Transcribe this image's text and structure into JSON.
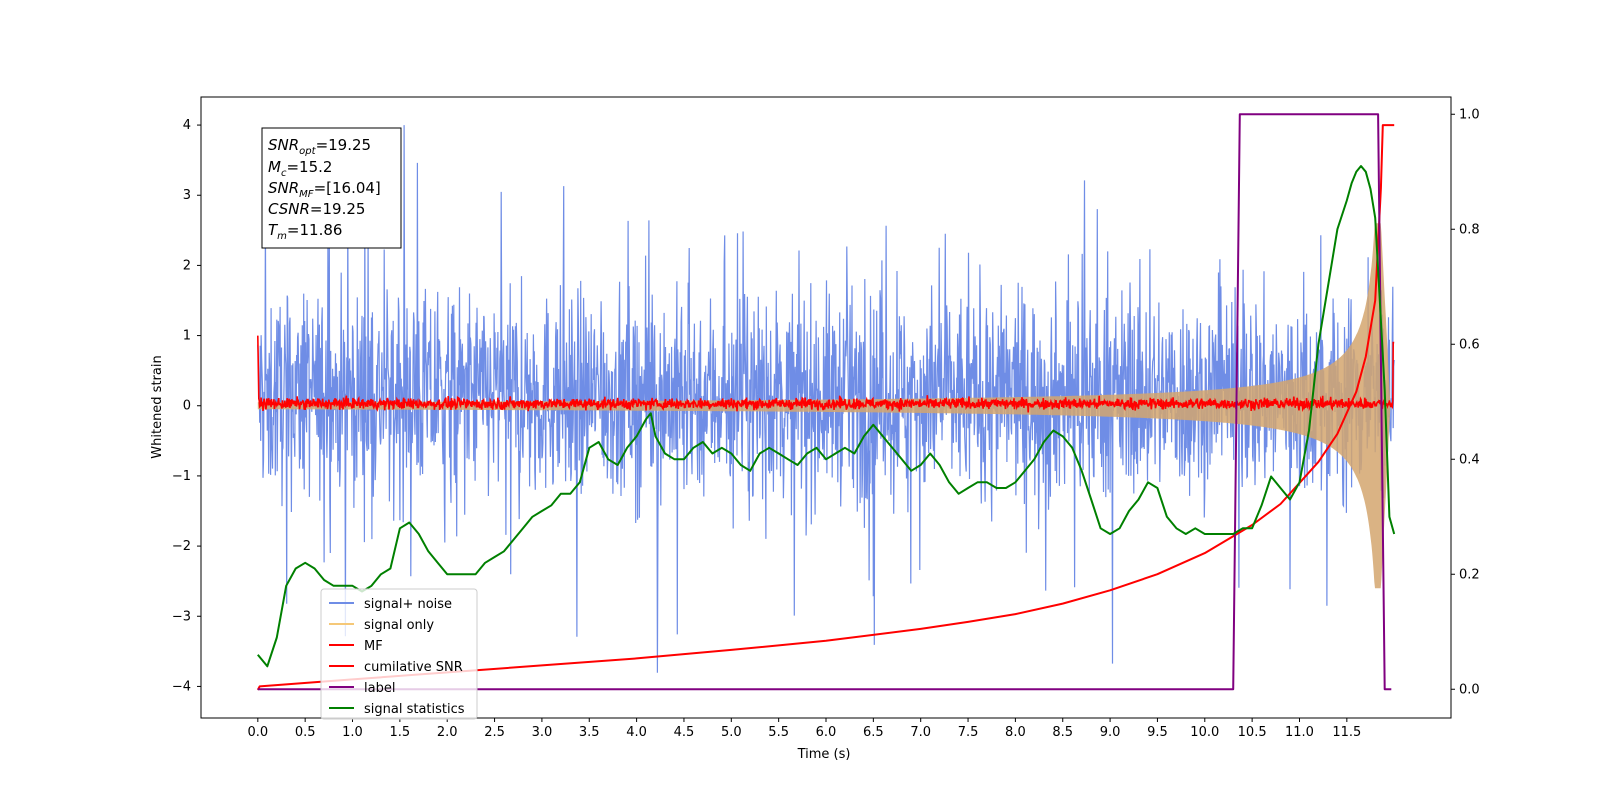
{
  "chart_data": {
    "type": "line",
    "xlabel": "Time (s)",
    "ylabel": "Whitened strain",
    "xlim": [
      -0.6,
      12.6
    ],
    "ylim": [
      -4.45,
      4.4
    ],
    "y2lim": [
      -0.05,
      1.03
    ],
    "x_ticks": [
      "0.0",
      "0.5",
      "1.0",
      "1.5",
      "2.0",
      "2.5",
      "3.0",
      "3.5",
      "4.0",
      "4.5",
      "5.0",
      "5.5",
      "6.0",
      "6.5",
      "7.0",
      "7.5",
      "8.0",
      "8.5",
      "9.0",
      "9.5",
      "10.0",
      "10.5",
      "11.0",
      "11.5"
    ],
    "y_ticks": [
      "4",
      "3",
      "2",
      "1",
      "0",
      "−1",
      "−2",
      "−3",
      "−4"
    ],
    "y2_ticks": [
      "1.0",
      "0.8",
      "0.6",
      "0.4",
      "0.2",
      "0.0"
    ],
    "grid": false,
    "legend_position": "lower-left",
    "annotation": {
      "snr_opt": {
        "base": "SNR",
        "sub": "opt",
        "value": "=19.25"
      },
      "mc": {
        "base": "M",
        "sub": "c",
        "value": "=15.2"
      },
      "snr_mf": {
        "base": "SNR",
        "sub": "MF",
        "value": "=[16.04]"
      },
      "csnr": {
        "base": "CSNR",
        "sub": "",
        "value": "=19.25"
      },
      "tm": {
        "base": "T",
        "sub": "m",
        "value": "=11.86"
      }
    },
    "series": [
      {
        "name": "signal+ noise",
        "color": "#6f8de6",
        "axis": "left",
        "style": "noise",
        "t_end": 12.0
      },
      {
        "name": "signal only",
        "color": "#f5c878",
        "axis": "left",
        "style": "chirp",
        "peak": 2.6,
        "t_peak": 11.86
      },
      {
        "name": "MF",
        "color": "#ff0000",
        "axis": "left",
        "style": "mf-noise",
        "t_end": 12.0
      },
      {
        "name": "cumilative SNR",
        "color": "#ff0000",
        "axis": "left",
        "x": [
          0.0,
          0.02,
          1.0,
          2.0,
          3.0,
          4.0,
          5.0,
          6.0,
          7.0,
          7.5,
          8.0,
          8.5,
          9.0,
          9.5,
          10.0,
          10.5,
          10.8,
          11.0,
          11.2,
          11.4,
          11.6,
          11.7,
          11.8,
          11.86,
          11.88,
          11.9,
          12.0
        ],
        "y": [
          -4.05,
          -4.0,
          -3.9,
          -3.8,
          -3.7,
          -3.6,
          -3.48,
          -3.35,
          -3.18,
          -3.08,
          -2.97,
          -2.82,
          -2.63,
          -2.4,
          -2.1,
          -1.7,
          -1.4,
          -1.1,
          -0.8,
          -0.4,
          0.2,
          0.7,
          1.5,
          3.1,
          4.0,
          4.0,
          4.0
        ]
      },
      {
        "name": "label",
        "color": "#800080",
        "axis": "right",
        "x": [
          0.0,
          10.3,
          10.37,
          11.83,
          11.9,
          11.97
        ],
        "y": [
          0.0,
          0.0,
          1.0,
          1.0,
          0.0,
          0.0
        ]
      },
      {
        "name": "signal statistics",
        "color": "#008000",
        "axis": "right",
        "x": [
          0.0,
          0.1,
          0.2,
          0.3,
          0.4,
          0.5,
          0.6,
          0.7,
          0.8,
          0.9,
          1.0,
          1.1,
          1.2,
          1.3,
          1.4,
          1.5,
          1.6,
          1.7,
          1.8,
          1.9,
          2.0,
          2.1,
          2.2,
          2.3,
          2.4,
          2.5,
          2.6,
          2.7,
          2.8,
          2.9,
          3.0,
          3.1,
          3.2,
          3.3,
          3.4,
          3.5,
          3.6,
          3.7,
          3.8,
          3.9,
          4.0,
          4.1,
          4.15,
          4.2,
          4.3,
          4.4,
          4.5,
          4.6,
          4.7,
          4.8,
          4.9,
          5.0,
          5.1,
          5.2,
          5.3,
          5.4,
          5.5,
          5.6,
          5.7,
          5.8,
          5.9,
          6.0,
          6.1,
          6.2,
          6.3,
          6.4,
          6.5,
          6.6,
          6.7,
          6.8,
          6.9,
          7.0,
          7.1,
          7.2,
          7.3,
          7.4,
          7.5,
          7.6,
          7.7,
          7.8,
          7.9,
          8.0,
          8.1,
          8.2,
          8.3,
          8.4,
          8.5,
          8.6,
          8.7,
          8.8,
          8.9,
          9.0,
          9.1,
          9.2,
          9.3,
          9.4,
          9.5,
          9.6,
          9.7,
          9.8,
          9.9,
          10.0,
          10.1,
          10.2,
          10.3,
          10.4,
          10.5,
          10.6,
          10.7,
          10.8,
          10.9,
          11.0,
          11.1,
          11.2,
          11.3,
          11.4,
          11.5,
          11.55,
          11.6,
          11.65,
          11.7,
          11.75,
          11.8,
          11.85,
          11.9,
          11.95,
          12.0
        ],
        "y": [
          0.06,
          0.04,
          0.09,
          0.18,
          0.21,
          0.22,
          0.21,
          0.19,
          0.18,
          0.18,
          0.18,
          0.17,
          0.18,
          0.2,
          0.21,
          0.28,
          0.29,
          0.27,
          0.24,
          0.22,
          0.2,
          0.2,
          0.2,
          0.2,
          0.22,
          0.23,
          0.24,
          0.26,
          0.28,
          0.3,
          0.31,
          0.32,
          0.34,
          0.34,
          0.36,
          0.42,
          0.43,
          0.4,
          0.39,
          0.42,
          0.44,
          0.47,
          0.48,
          0.44,
          0.41,
          0.4,
          0.4,
          0.42,
          0.43,
          0.41,
          0.42,
          0.41,
          0.39,
          0.38,
          0.41,
          0.42,
          0.41,
          0.4,
          0.39,
          0.41,
          0.42,
          0.4,
          0.41,
          0.42,
          0.41,
          0.44,
          0.46,
          0.44,
          0.42,
          0.4,
          0.38,
          0.39,
          0.41,
          0.39,
          0.36,
          0.34,
          0.35,
          0.36,
          0.36,
          0.35,
          0.35,
          0.36,
          0.38,
          0.4,
          0.43,
          0.45,
          0.44,
          0.42,
          0.38,
          0.33,
          0.28,
          0.27,
          0.28,
          0.31,
          0.33,
          0.36,
          0.35,
          0.3,
          0.28,
          0.27,
          0.28,
          0.27,
          0.27,
          0.27,
          0.27,
          0.28,
          0.28,
          0.32,
          0.37,
          0.35,
          0.33,
          0.36,
          0.45,
          0.6,
          0.7,
          0.8,
          0.85,
          0.88,
          0.9,
          0.91,
          0.9,
          0.87,
          0.82,
          0.67,
          0.52,
          0.3,
          0.27
        ]
      }
    ]
  }
}
